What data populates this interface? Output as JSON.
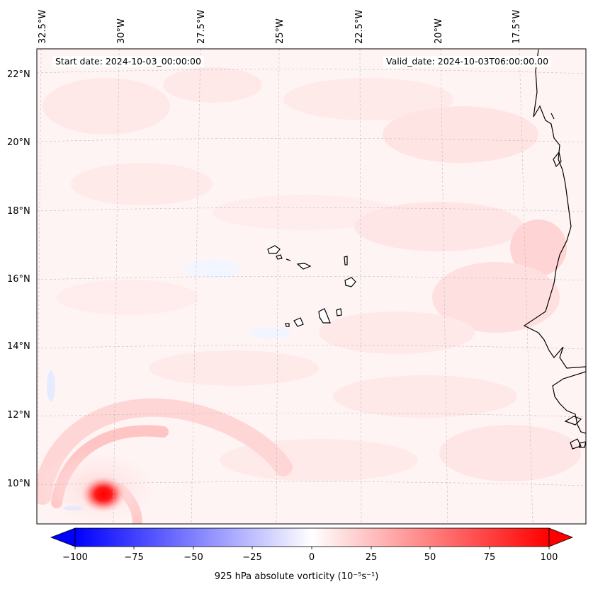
{
  "map": {
    "lon_labels": [
      "32.5°W",
      "30°W",
      "27.5°W",
      "25°W",
      "22.5°W",
      "20°W",
      "17.5°W"
    ],
    "lat_labels": [
      "22°N",
      "20°N",
      "18°N",
      "16°N",
      "14°N",
      "12°N",
      "10°N"
    ],
    "start_date": "Start date: 2024-10-03_00:00:00",
    "valid_date": "Valid_date: 2024-10-03T06:00:00.00",
    "field": "925 hPa absolute vorticity",
    "units": "(10⁻⁵s⁻¹)",
    "colormap": {
      "negative": "#0000ff",
      "zero": "#ffffff",
      "positive": "#ff0000"
    },
    "max_vorticity_region": "near 10°N, 31°W"
  },
  "colorbar": {
    "ticks": [
      "−100",
      "−75",
      "−50",
      "−25",
      "0",
      "25",
      "50",
      "75",
      "100"
    ],
    "label": "925 hPa absolute vorticity (10⁻⁵s⁻¹)"
  }
}
